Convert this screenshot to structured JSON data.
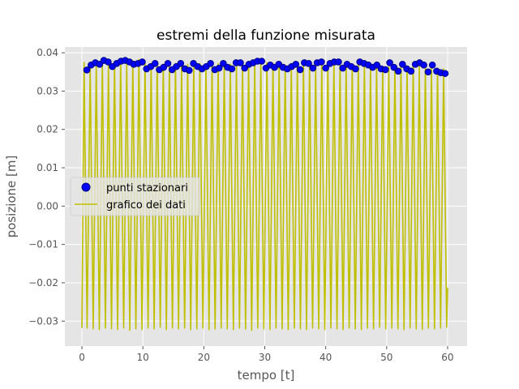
{
  "chart_data": {
    "type": "line",
    "title": "estremi della funzione misurata",
    "xlabel": "tempo [t]",
    "ylabel": "posizione [m]",
    "xlim": [
      -2.8,
      63.2
    ],
    "ylim": [
      -0.0365,
      0.0415
    ],
    "x_ticks": [
      0,
      10,
      20,
      30,
      40,
      50,
      60
    ],
    "y_ticks": [
      0.04,
      0.03,
      0.02,
      0.01,
      0.0,
      -0.01,
      -0.02,
      -0.03
    ],
    "x_tick_labels": [
      "0",
      "10",
      "20",
      "30",
      "40",
      "50",
      "60"
    ],
    "y_tick_labels": [
      "0.04",
      "0.03",
      "0.02",
      "0.01",
      "0.00",
      "−0.01",
      "−0.02",
      "−0.03"
    ],
    "grid": true,
    "legend_position": "center-left",
    "style": {
      "axes_background": "#e5e5e5",
      "grid_color": "#ffffff",
      "line_color": "#bfbf00",
      "marker_color": "#0000ff",
      "marker_edge": "#000080"
    },
    "series": [
      {
        "name": "grafico dei dati",
        "kind": "line",
        "period": 1.0,
        "x_start": 0.0,
        "x_end": 60.0,
        "end_value": -0.0213,
        "max_values": [
          0.0375,
          0.0368,
          0.0372,
          0.0378,
          0.037,
          0.0376,
          0.038,
          0.0374,
          0.0379,
          0.0382,
          0.0378,
          0.0372,
          0.0376,
          0.037,
          0.0368,
          0.0372,
          0.0366,
          0.037,
          0.0368,
          0.0372,
          0.037,
          0.0366,
          0.0372,
          0.0366,
          0.037,
          0.0368,
          0.0372,
          0.0368,
          0.0374,
          0.0372,
          0.0374,
          0.0372,
          0.037,
          0.0368,
          0.0372,
          0.037,
          0.0374,
          0.0372,
          0.0368,
          0.037,
          0.0374,
          0.0376,
          0.0372,
          0.037,
          0.0368,
          0.0372,
          0.037,
          0.0366,
          0.0368,
          0.0364,
          0.0362,
          0.0366,
          0.0364,
          0.0362,
          0.0366,
          0.0364,
          0.0362,
          0.0364,
          0.036,
          0.0358
        ],
        "min_values": [
          -0.0318,
          -0.032,
          -0.0322,
          -0.0318,
          -0.032,
          -0.0322,
          -0.0318,
          -0.0324,
          -0.032,
          -0.0322,
          -0.0318,
          -0.032,
          -0.0316,
          -0.0322,
          -0.0318,
          -0.032,
          -0.0318,
          -0.0322,
          -0.032,
          -0.0318,
          -0.0322,
          -0.032,
          -0.0318,
          -0.032,
          -0.0322,
          -0.0318,
          -0.032,
          -0.0324,
          -0.0318,
          -0.032,
          -0.0322,
          -0.0318,
          -0.032,
          -0.0322,
          -0.0318,
          -0.032,
          -0.0322,
          -0.0318,
          -0.032,
          -0.0322,
          -0.0318,
          -0.032,
          -0.0322,
          -0.0318,
          -0.032,
          -0.0322,
          -0.0318,
          -0.032,
          -0.0316,
          -0.032,
          -0.0318,
          -0.032,
          -0.0322,
          -0.0318,
          -0.032,
          -0.0322,
          -0.0318,
          -0.032,
          -0.0318,
          -0.0316
        ]
      },
      {
        "name": "punti stazionari",
        "kind": "scatter",
        "x": [
          0.8,
          1.5,
          2.2,
          2.9,
          3.6,
          4.3,
          5.0,
          5.7,
          6.4,
          7.1,
          7.8,
          8.5,
          9.2,
          9.9,
          10.6,
          11.3,
          12.0,
          12.7,
          13.4,
          14.1,
          14.8,
          15.5,
          16.2,
          16.9,
          17.6,
          18.3,
          19.0,
          19.7,
          20.4,
          21.1,
          21.8,
          22.5,
          23.2,
          23.9,
          24.6,
          25.3,
          26.0,
          26.7,
          27.4,
          28.1,
          28.8,
          29.5,
          30.2,
          30.9,
          31.6,
          32.3,
          33.0,
          33.7,
          34.4,
          35.1,
          35.8,
          36.5,
          37.2,
          37.9,
          38.6,
          39.3,
          40.0,
          40.7,
          41.4,
          42.1,
          42.8,
          43.5,
          44.2,
          44.9,
          45.6,
          46.3,
          47.0,
          47.7,
          48.4,
          49.1,
          49.8,
          50.5,
          51.2,
          51.9,
          52.6,
          53.3,
          54.0,
          54.7,
          55.4,
          56.1,
          56.8,
          57.5,
          58.2,
          58.9,
          59.6
        ],
        "y": [
          0.0355,
          0.0368,
          0.0374,
          0.037,
          0.038,
          0.0376,
          0.0364,
          0.0372,
          0.0378,
          0.038,
          0.0376,
          0.037,
          0.0372,
          0.0376,
          0.0358,
          0.0364,
          0.0372,
          0.0356,
          0.0362,
          0.0372,
          0.0356,
          0.0364,
          0.0372,
          0.0358,
          0.0354,
          0.0372,
          0.0364,
          0.0358,
          0.0364,
          0.0372,
          0.0356,
          0.036,
          0.0372,
          0.0362,
          0.0358,
          0.0374,
          0.0374,
          0.036,
          0.037,
          0.0374,
          0.0378,
          0.0378,
          0.036,
          0.0368,
          0.0362,
          0.037,
          0.0362,
          0.0358,
          0.0364,
          0.037,
          0.0356,
          0.0374,
          0.0372,
          0.036,
          0.0374,
          0.0376,
          0.036,
          0.0372,
          0.0376,
          0.0376,
          0.036,
          0.037,
          0.0364,
          0.0358,
          0.0376,
          0.0372,
          0.0368,
          0.0362,
          0.0368,
          0.0358,
          0.0356,
          0.0374,
          0.0362,
          0.0352,
          0.037,
          0.0358,
          0.0352,
          0.037,
          0.0374,
          0.0368,
          0.035,
          0.0368,
          0.0352,
          0.0348,
          0.0346
        ]
      }
    ]
  }
}
